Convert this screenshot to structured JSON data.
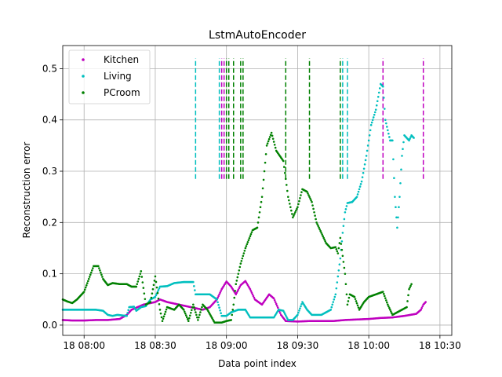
{
  "chart_data": {
    "type": "scatter",
    "title": "LstmAutoEncoder",
    "xlabel": "Data point index",
    "ylabel": "Reconstruction error",
    "x_unit": "time (HH:MM on day 18)",
    "xlim": [
      "07:51",
      "10:35"
    ],
    "ylim": [
      -0.02,
      0.545
    ],
    "x_ticks": [
      "18 08:00",
      "18 08:30",
      "18 09:00",
      "18 09:30",
      "18 10:00",
      "18 10:30"
    ],
    "y_ticks": [
      "0.0",
      "0.1",
      "0.2",
      "0.3",
      "0.4",
      "0.5"
    ],
    "grid": true,
    "legend_position": "top-left",
    "series": [
      {
        "name": "Kitchen",
        "color": "#bf00bf",
        "points": [
          [
            "07:51",
            0.01
          ],
          [
            "07:55",
            0.009
          ],
          [
            "08:00",
            0.009
          ],
          [
            "08:05",
            0.01
          ],
          [
            "08:10",
            0.01
          ],
          [
            "08:15",
            0.012
          ],
          [
            "08:18",
            0.02
          ],
          [
            "08:20",
            0.03
          ],
          [
            "08:25",
            0.04
          ],
          [
            "08:30",
            0.045
          ],
          [
            "08:32",
            0.05
          ],
          [
            "08:35",
            0.045
          ],
          [
            "08:40",
            0.04
          ],
          [
            "08:45",
            0.035
          ],
          [
            "08:50",
            0.03
          ],
          [
            "08:53",
            0.035
          ],
          [
            "08:56",
            0.05
          ],
          [
            "08:58",
            0.07
          ],
          [
            "09:00",
            0.085
          ],
          [
            "09:02",
            0.075
          ],
          [
            "09:04",
            0.06
          ],
          [
            "09:06",
            0.078
          ],
          [
            "09:08",
            0.086
          ],
          [
            "09:10",
            0.07
          ],
          [
            "09:12",
            0.05
          ],
          [
            "09:15",
            0.04
          ],
          [
            "09:18",
            0.06
          ],
          [
            "09:20",
            0.052
          ],
          [
            "09:23",
            0.02
          ],
          [
            "09:25",
            0.008
          ],
          [
            "09:30",
            0.007
          ],
          [
            "09:35",
            0.008
          ],
          [
            "09:40",
            0.008
          ],
          [
            "09:45",
            0.008
          ],
          [
            "09:50",
            0.01
          ],
          [
            "09:55",
            0.011
          ],
          [
            "10:00",
            0.012
          ],
          [
            "10:05",
            0.014
          ],
          [
            "10:10",
            0.015
          ],
          [
            "10:15",
            0.018
          ],
          [
            "10:20",
            0.022
          ],
          [
            "10:22",
            0.03
          ],
          [
            "10:23",
            0.04
          ],
          [
            "10:24",
            0.045
          ]
        ]
      },
      {
        "name": "Living",
        "color": "#00bfbf",
        "points": [
          [
            "07:51",
            0.03
          ],
          [
            "07:55",
            0.03
          ],
          [
            "08:00",
            0.03
          ],
          [
            "08:05",
            0.03
          ],
          [
            "08:08",
            0.028
          ],
          [
            "08:10",
            0.02
          ],
          [
            "08:12",
            0.018
          ],
          [
            "08:14",
            0.02
          ],
          [
            "08:18",
            0.018
          ],
          [
            "08:19",
            0.035
          ],
          [
            "08:21",
            0.036
          ],
          [
            "08:22",
            0.028
          ],
          [
            "08:24",
            0.035
          ],
          [
            "08:26",
            0.037
          ],
          [
            "08:28",
            0.05
          ],
          [
            "08:30",
            0.055
          ],
          [
            "08:32",
            0.075
          ],
          [
            "08:35",
            0.076
          ],
          [
            "08:38",
            0.082
          ],
          [
            "08:42",
            0.084
          ],
          [
            "08:46",
            0.084
          ],
          [
            "08:47",
            0.06
          ],
          [
            "08:50",
            0.06
          ],
          [
            "08:53",
            0.06
          ],
          [
            "08:56",
            0.05
          ],
          [
            "08:58",
            0.018
          ],
          [
            "09:00",
            0.018
          ],
          [
            "09:02",
            0.025
          ],
          [
            "09:05",
            0.03
          ],
          [
            "09:08",
            0.03
          ],
          [
            "09:10",
            0.015
          ],
          [
            "09:15",
            0.015
          ],
          [
            "09:20",
            0.015
          ],
          [
            "09:22",
            0.03
          ],
          [
            "09:24",
            0.028
          ],
          [
            "09:26",
            0.01
          ],
          [
            "09:28",
            0.01
          ],
          [
            "09:30",
            0.02
          ],
          [
            "09:32",
            0.045
          ],
          [
            "09:34",
            0.03
          ],
          [
            "09:36",
            0.02
          ],
          [
            "09:40",
            0.02
          ],
          [
            "09:44",
            0.03
          ],
          [
            "09:46",
            0.06
          ],
          [
            "09:48",
            0.13
          ],
          [
            "09:49",
            0.18
          ],
          [
            "09:50",
            0.22
          ],
          [
            "09:51",
            0.238
          ],
          [
            "09:53",
            0.24
          ],
          [
            "09:55",
            0.25
          ],
          [
            "09:57",
            0.28
          ],
          [
            "09:59",
            0.33
          ],
          [
            "10:01",
            0.39
          ],
          [
            "10:03",
            0.42
          ],
          [
            "10:05",
            0.47
          ],
          [
            "10:06",
            0.465
          ],
          [
            "10:07",
            0.4
          ],
          [
            "10:08",
            0.38
          ],
          [
            "10:09",
            0.36
          ],
          [
            "10:10",
            0.36
          ],
          [
            "10:11",
            0.25
          ],
          [
            "10:12",
            0.19
          ],
          [
            "10:13",
            0.25
          ],
          [
            "10:14",
            0.33
          ],
          [
            "10:15",
            0.37
          ],
          [
            "10:17",
            0.36
          ],
          [
            "10:18",
            0.37
          ],
          [
            "10:19",
            0.365
          ]
        ]
      },
      {
        "name": "PCroom",
        "color": "#008000",
        "points": [
          [
            "07:51",
            0.05
          ],
          [
            "07:53",
            0.046
          ],
          [
            "07:55",
            0.043
          ],
          [
            "07:57",
            0.05
          ],
          [
            "08:00",
            0.065
          ],
          [
            "08:02",
            0.09
          ],
          [
            "08:04",
            0.115
          ],
          [
            "08:06",
            0.115
          ],
          [
            "08:08",
            0.09
          ],
          [
            "08:10",
            0.078
          ],
          [
            "08:12",
            0.082
          ],
          [
            "08:15",
            0.08
          ],
          [
            "08:18",
            0.08
          ],
          [
            "08:20",
            0.075
          ],
          [
            "08:22",
            0.075
          ],
          [
            "08:24",
            0.105
          ],
          [
            "08:26",
            0.04
          ],
          [
            "08:28",
            0.045
          ],
          [
            "08:30",
            0.095
          ],
          [
            "08:32",
            0.03
          ],
          [
            "08:33",
            0.008
          ],
          [
            "08:35",
            0.035
          ],
          [
            "08:38",
            0.03
          ],
          [
            "08:40",
            0.04
          ],
          [
            "08:42",
            0.03
          ],
          [
            "08:44",
            0.008
          ],
          [
            "08:46",
            0.04
          ],
          [
            "08:48",
            0.01
          ],
          [
            "08:50",
            0.04
          ],
          [
            "08:52",
            0.03
          ],
          [
            "08:55",
            0.005
          ],
          [
            "08:58",
            0.005
          ],
          [
            "09:00",
            0.008
          ],
          [
            "09:02",
            0.01
          ],
          [
            "09:03",
            0.04
          ],
          [
            "09:04",
            0.08
          ],
          [
            "09:06",
            0.12
          ],
          [
            "09:08",
            0.15
          ],
          [
            "09:11",
            0.185
          ],
          [
            "09:13",
            0.19
          ],
          [
            "09:15",
            0.25
          ],
          [
            "09:17",
            0.35
          ],
          [
            "09:19",
            0.375
          ],
          [
            "09:21",
            0.34
          ],
          [
            "09:24",
            0.32
          ],
          [
            "09:26",
            0.25
          ],
          [
            "09:28",
            0.21
          ],
          [
            "09:30",
            0.23
          ],
          [
            "09:32",
            0.265
          ],
          [
            "09:34",
            0.26
          ],
          [
            "09:36",
            0.24
          ],
          [
            "09:38",
            0.2
          ],
          [
            "09:40",
            0.18
          ],
          [
            "09:42",
            0.16
          ],
          [
            "09:44",
            0.15
          ],
          [
            "09:46",
            0.152
          ],
          [
            "09:47",
            0.14
          ],
          [
            "09:48",
            0.17
          ],
          [
            "09:50",
            0.1
          ],
          [
            "09:51",
            0.04
          ],
          [
            "09:52",
            0.06
          ],
          [
            "09:54",
            0.055
          ],
          [
            "09:56",
            0.03
          ],
          [
            "09:58",
            0.045
          ],
          [
            "10:00",
            0.055
          ],
          [
            "10:03",
            0.06
          ],
          [
            "10:06",
            0.065
          ],
          [
            "10:08",
            0.04
          ],
          [
            "10:10",
            0.02
          ],
          [
            "10:12",
            0.025
          ],
          [
            "10:14",
            0.03
          ],
          [
            "10:16",
            0.035
          ],
          [
            "10:17",
            0.07
          ],
          [
            "10:18",
            0.08
          ]
        ]
      }
    ],
    "vertical_markers": [
      {
        "series": "Living",
        "x": [
          "08:47",
          "08:57",
          "09:51",
          "09:49"
        ]
      },
      {
        "series": "Kitchen",
        "x": [
          "08:58",
          "08:59",
          "10:06",
          "10:23"
        ]
      },
      {
        "series": "PCroom",
        "x": [
          "09:00",
          "09:01",
          "09:03",
          "09:06",
          "09:07",
          "09:25",
          "09:35",
          "09:48"
        ]
      }
    ],
    "marker_range": [
      0.285,
      0.52
    ]
  }
}
